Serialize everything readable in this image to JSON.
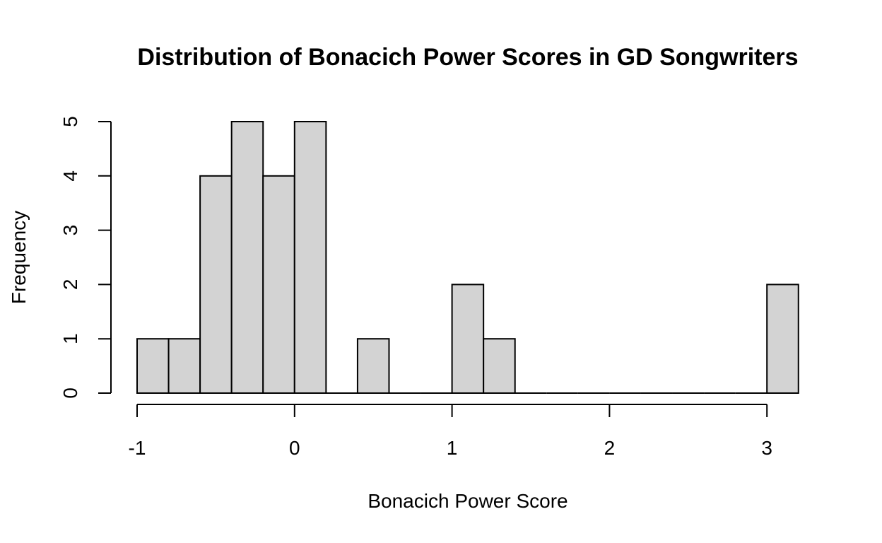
{
  "chart_data": {
    "type": "bar",
    "title": "Distribution of Bonacich Power Scores in GD Songwriters",
    "xlabel": "Bonacich Power Score",
    "ylabel": "Frequency",
    "bin_edges": [
      -1.0,
      -0.8,
      -0.6,
      -0.4,
      -0.2,
      0.0,
      0.2,
      0.4,
      0.6,
      0.8,
      1.0,
      1.2,
      1.4,
      1.6,
      1.8,
      2.0,
      2.2,
      2.4,
      2.6,
      2.8,
      3.0,
      3.2
    ],
    "values": [
      1,
      1,
      4,
      5,
      4,
      5,
      0,
      1,
      0,
      0,
      2,
      1,
      0,
      0,
      0,
      0,
      0,
      0,
      0,
      0,
      2
    ],
    "xlim": [
      -1,
      3.2
    ],
    "ylim": [
      0,
      5
    ],
    "x_ticks": [
      -1,
      0,
      1,
      2,
      3
    ],
    "x_tick_labels": [
      "-1",
      "0",
      "1",
      "2",
      "3"
    ],
    "y_ticks": [
      0,
      1,
      2,
      3,
      4,
      5
    ],
    "y_tick_labels": [
      "0",
      "1",
      "2",
      "3",
      "4",
      "5"
    ],
    "grid": false,
    "legend": "none"
  }
}
